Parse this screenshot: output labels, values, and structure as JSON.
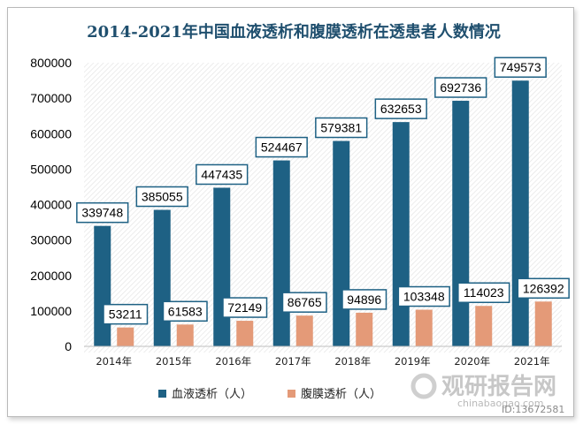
{
  "chart_data": {
    "type": "bar",
    "title": "2014-2021年中国血液透析和腹膜透析在透患者人数情况",
    "categories": [
      "2014年",
      "2015年",
      "2016年",
      "2017年",
      "2018年",
      "2019年",
      "2020年",
      "2021年"
    ],
    "series": [
      {
        "name": "血液透析（人）",
        "color": "#1e6184",
        "values": [
          339748,
          385055,
          447435,
          524467,
          579381,
          632653,
          692736,
          749573
        ]
      },
      {
        "name": "腹膜透析（人）",
        "color": "#e49a78",
        "values": [
          53211,
          61583,
          72149,
          86765,
          94896,
          103348,
          114023,
          126392
        ]
      }
    ],
    "ylim": [
      0,
      800000
    ],
    "yticks": [
      "0",
      "100000",
      "200000",
      "300000",
      "400000",
      "500000",
      "600000",
      "700000",
      "800000"
    ],
    "grid": false,
    "legend_position": "bottom"
  },
  "watermark": {
    "brand": "观研报告网",
    "site": "chinabaogao.com",
    "id": "ID:13672581"
  },
  "colors": {
    "title": "#1f4f6e",
    "label_border": "#1e6184"
  }
}
